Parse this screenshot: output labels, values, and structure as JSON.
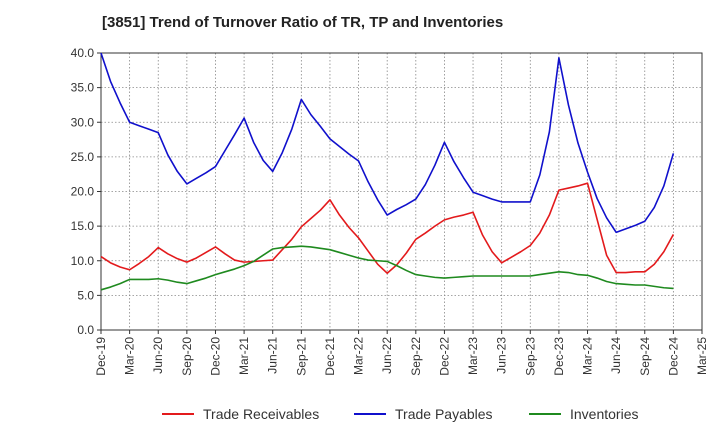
{
  "chart_data": {
    "type": "line",
    "title": "[3851]  Trend of Turnover Ratio of TR, TP and Inventories",
    "xlabel": "",
    "ylabel": "",
    "x": [
      "Dec-19",
      "Jan-20",
      "Feb-20",
      "Mar-20",
      "Apr-20",
      "May-20",
      "Jun-20",
      "Jul-20",
      "Aug-20",
      "Sep-20",
      "Oct-20",
      "Nov-20",
      "Dec-20",
      "Jan-21",
      "Feb-21",
      "Mar-21",
      "Apr-21",
      "May-21",
      "Jun-21",
      "Jul-21",
      "Aug-21",
      "Sep-21",
      "Oct-21",
      "Nov-21",
      "Dec-21",
      "Jan-22",
      "Feb-22",
      "Mar-22",
      "Apr-22",
      "May-22",
      "Jun-22",
      "Jul-22",
      "Aug-22",
      "Sep-22",
      "Oct-22",
      "Nov-22",
      "Dec-22",
      "Jan-23",
      "Feb-23",
      "Mar-23",
      "Apr-23",
      "May-23",
      "Jun-23",
      "Jul-23",
      "Aug-23",
      "Sep-23",
      "Oct-23",
      "Nov-23",
      "Dec-23",
      "Jan-24",
      "Feb-24",
      "Mar-24",
      "Apr-24",
      "May-24",
      "Jun-24",
      "Jul-24",
      "Aug-24",
      "Sep-24",
      "Oct-24",
      "Nov-24",
      "Dec-24"
    ],
    "x_ticks": [
      "Dec-19",
      "Mar-20",
      "Jun-20",
      "Sep-20",
      "Dec-20",
      "Mar-21",
      "Jun-21",
      "Sep-21",
      "Dec-21",
      "Mar-22",
      "Jun-22",
      "Sep-22",
      "Dec-22",
      "Mar-23",
      "Jun-23",
      "Sep-23",
      "Dec-23",
      "Mar-24",
      "Jun-24",
      "Sep-24",
      "Dec-24",
      "Mar-25"
    ],
    "ylim": [
      0,
      40
    ],
    "y_ticks": [
      "0.0",
      "5.0",
      "10.0",
      "15.0",
      "20.0",
      "25.0",
      "30.0",
      "35.0",
      "40.0"
    ],
    "grid": true,
    "legend_position": "bottom",
    "series": [
      {
        "name": "Trade Receivables",
        "color": "#e31a1c",
        "values": [
          10.6,
          9.7,
          9.1,
          8.7,
          9.6,
          10.6,
          11.9,
          11.0,
          10.3,
          9.8,
          10.4,
          11.2,
          12.0,
          11.0,
          10.1,
          9.8,
          9.9,
          10.0,
          10.1,
          11.6,
          13.1,
          14.9,
          16.1,
          17.3,
          18.8,
          16.6,
          14.8,
          13.3,
          11.4,
          9.5,
          8.2,
          9.4,
          11.1,
          13.1,
          14.0,
          15.0,
          15.9,
          16.3,
          16.6,
          17.0,
          13.7,
          11.3,
          9.7,
          10.5,
          11.3,
          12.2,
          14.0,
          16.6,
          20.2,
          20.5,
          20.8,
          21.2,
          16.0,
          10.8,
          8.3,
          8.3,
          8.4,
          8.4,
          9.5,
          11.3,
          13.8
        ]
      },
      {
        "name": "Trade Payables",
        "color": "#1010cc",
        "values": [
          40.0,
          35.9,
          32.8,
          30.0,
          29.5,
          29.0,
          28.5,
          25.3,
          22.9,
          21.1,
          21.9,
          22.7,
          23.6,
          25.9,
          28.2,
          30.6,
          27.1,
          24.5,
          22.9,
          25.6,
          29.0,
          33.3,
          31.1,
          29.4,
          27.6,
          26.5,
          25.4,
          24.4,
          21.4,
          18.8,
          16.6,
          17.4,
          18.1,
          18.9,
          21.0,
          23.8,
          27.1,
          24.3,
          22.0,
          19.9,
          19.4,
          18.9,
          18.5,
          18.5,
          18.5,
          18.5,
          22.4,
          28.6,
          39.3,
          32.5,
          27.0,
          22.8,
          19.0,
          16.2,
          14.1,
          14.6,
          15.1,
          15.7,
          17.7,
          20.8,
          25.5
        ]
      },
      {
        "name": "Inventories",
        "color": "#1f8a1f",
        "values": [
          5.8,
          6.2,
          6.7,
          7.3,
          7.3,
          7.3,
          7.4,
          7.2,
          6.9,
          6.7,
          7.1,
          7.5,
          8.0,
          8.4,
          8.8,
          9.3,
          9.9,
          10.8,
          11.7,
          11.9,
          12.0,
          12.1,
          12.0,
          11.8,
          11.6,
          11.2,
          10.8,
          10.4,
          10.1,
          10.0,
          9.9,
          9.3,
          8.6,
          8.0,
          7.8,
          7.6,
          7.5,
          7.6,
          7.7,
          7.8,
          7.8,
          7.8,
          7.8,
          7.8,
          7.8,
          7.8,
          8.0,
          8.2,
          8.4,
          8.3,
          8.0,
          7.9,
          7.5,
          7.0,
          6.7,
          6.6,
          6.5,
          6.5,
          6.3,
          6.1,
          6.0
        ]
      }
    ]
  }
}
